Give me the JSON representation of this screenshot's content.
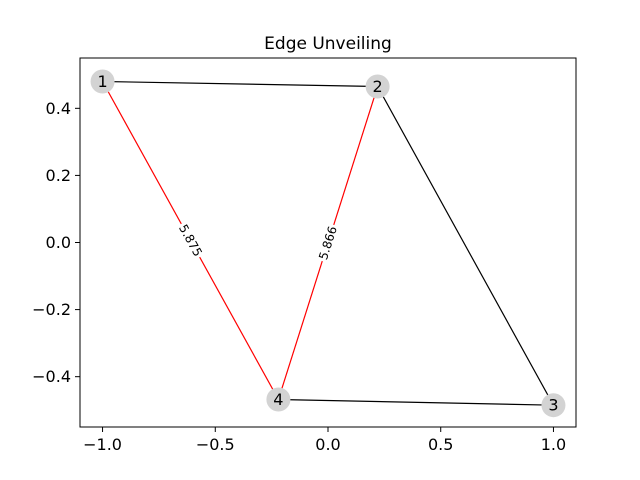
{
  "chart_data": {
    "type": "network",
    "title": "Edge Unveiling",
    "xlim": [
      -1.1,
      1.1
    ],
    "ylim": [
      -0.55,
      0.55
    ],
    "xticks": [
      -1.0,
      -0.5,
      0.0,
      0.5,
      1.0
    ],
    "xtick_labels": [
      "−1.0",
      "−0.5",
      "0.0",
      "0.5",
      "1.0"
    ],
    "yticks": [
      -0.4,
      -0.2,
      0.0,
      0.2,
      0.4
    ],
    "ytick_labels": [
      "−0.4",
      "−0.2",
      "0.0",
      "0.2",
      "0.4"
    ],
    "grid": false,
    "node_color": "#d3d3d3",
    "nodes": [
      {
        "id": "1",
        "x": -1.0,
        "y": 0.48
      },
      {
        "id": "2",
        "x": 0.22,
        "y": 0.465
      },
      {
        "id": "3",
        "x": 1.0,
        "y": -0.485
      },
      {
        "id": "4",
        "x": -0.22,
        "y": -0.468
      }
    ],
    "edges": [
      {
        "source": "1",
        "target": "2",
        "color": "#000000",
        "label": ""
      },
      {
        "source": "2",
        "target": "3",
        "color": "#000000",
        "label": ""
      },
      {
        "source": "3",
        "target": "4",
        "color": "#000000",
        "label": ""
      },
      {
        "source": "1",
        "target": "4",
        "color": "#ff0000",
        "label": "5.875"
      },
      {
        "source": "2",
        "target": "4",
        "color": "#ff0000",
        "label": "5.866"
      }
    ]
  }
}
